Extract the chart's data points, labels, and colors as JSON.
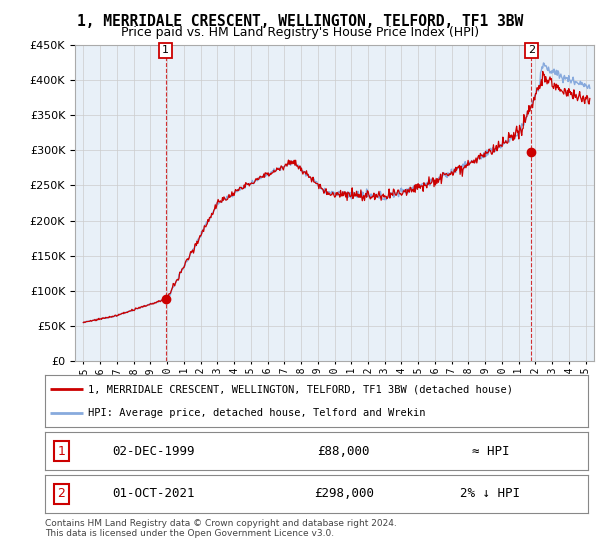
{
  "title": "1, MERRIDALE CRESCENT, WELLINGTON, TELFORD, TF1 3BW",
  "subtitle": "Price paid vs. HM Land Registry's House Price Index (HPI)",
  "title_fontsize": 10.5,
  "subtitle_fontsize": 9,
  "ylim": [
    0,
    450000
  ],
  "yticks": [
    0,
    50000,
    100000,
    150000,
    200000,
    250000,
    300000,
    350000,
    400000,
    450000
  ],
  "xlim_start": 1994.5,
  "xlim_end": 2025.5,
  "xtick_labels": [
    "1995",
    "1996",
    "1997",
    "1998",
    "1999",
    "2000",
    "2001",
    "2002",
    "2003",
    "2004",
    "2005",
    "2006",
    "2007",
    "2008",
    "2009",
    "2010",
    "2011",
    "2012",
    "2013",
    "2014",
    "2015",
    "2016",
    "2017",
    "2018",
    "2019",
    "2020",
    "2021",
    "2022",
    "2023",
    "2024",
    "2025"
  ],
  "hpi_color": "#88aadd",
  "sale_color": "#cc0000",
  "chart_bg": "#e8f0f8",
  "point1_x": 1999.92,
  "point1_y": 88000,
  "point2_x": 2021.75,
  "point2_y": 298000,
  "legend_line1": "1, MERRIDALE CRESCENT, WELLINGTON, TELFORD, TF1 3BW (detached house)",
  "legend_line2": "HPI: Average price, detached house, Telford and Wrekin",
  "table_row1_num": "1",
  "table_row1_date": "02-DEC-1999",
  "table_row1_price": "£88,000",
  "table_row1_hpi": "≈ HPI",
  "table_row2_num": "2",
  "table_row2_date": "01-OCT-2021",
  "table_row2_price": "£298,000",
  "table_row2_hpi": "2% ↓ HPI",
  "footer": "Contains HM Land Registry data © Crown copyright and database right 2024.\nThis data is licensed under the Open Government Licence v3.0.",
  "background_color": "#ffffff",
  "grid_color": "#cccccc"
}
